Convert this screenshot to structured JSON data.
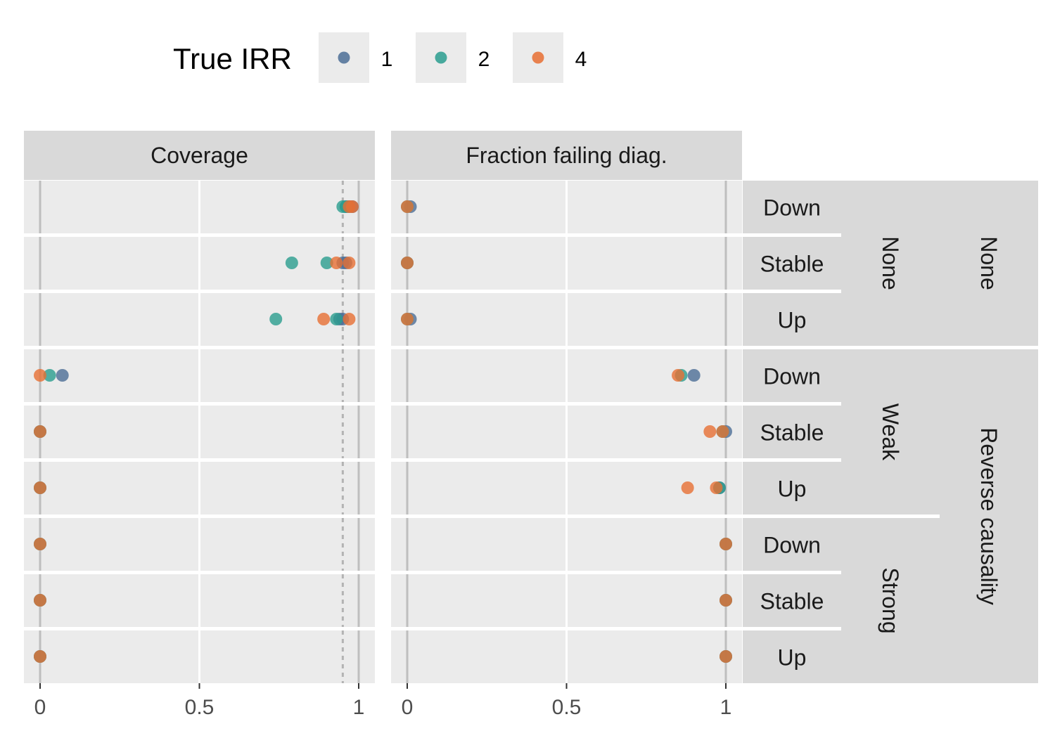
{
  "chart_data": {
    "type": "scatter",
    "legend": {
      "title": "True IRR",
      "position": "top",
      "entries": [
        {
          "label": "1",
          "color": "#4C6E96"
        },
        {
          "label": "2",
          "color": "#2A9D8F"
        },
        {
          "label": "4",
          "color": "#E76F33"
        }
      ]
    },
    "columns": [
      "Coverage",
      "Fraction failing diag."
    ],
    "x_ticks": [
      "0",
      "0.5",
      "1"
    ],
    "xlim": [
      0,
      1
    ],
    "reference_line": {
      "panel": "Coverage",
      "x": 0.95,
      "style": "dotted"
    },
    "grid": true,
    "rows": [
      {
        "trend": "Down",
        "strength": "None",
        "scenario": "None"
      },
      {
        "trend": "Stable",
        "strength": "None",
        "scenario": "None"
      },
      {
        "trend": "Up",
        "strength": "None",
        "scenario": "None"
      },
      {
        "trend": "Down",
        "strength": "Weak",
        "scenario": "Reverse causality"
      },
      {
        "trend": "Stable",
        "strength": "Weak",
        "scenario": "Reverse causality"
      },
      {
        "trend": "Up",
        "strength": "Weak",
        "scenario": "Reverse causality"
      },
      {
        "trend": "Down",
        "strength": "Strong",
        "scenario": "Reverse causality"
      },
      {
        "trend": "Stable",
        "strength": "Strong",
        "scenario": "Reverse causality"
      },
      {
        "trend": "Up",
        "strength": "Strong",
        "scenario": "Reverse causality"
      }
    ],
    "strength_groups": [
      {
        "label": "None",
        "rows": [
          0,
          2
        ]
      },
      {
        "label": "Weak",
        "rows": [
          3,
          5
        ]
      },
      {
        "label": "Strong",
        "rows": [
          6,
          8
        ]
      }
    ],
    "scenario_groups": [
      {
        "label": "None",
        "rows": [
          0,
          2
        ]
      },
      {
        "label": "Reverse causality",
        "rows": [
          3,
          8
        ]
      }
    ],
    "series": [
      {
        "name": "1",
        "coverage": [
          [
            0.96,
            0.97,
            0.98
          ],
          [
            0.95,
            0.96
          ],
          [
            0.94,
            0.95
          ],
          [
            0.07
          ],
          [
            0
          ],
          [
            0
          ],
          [
            0
          ],
          [
            0
          ],
          [
            0
          ]
        ],
        "fraction_failing": [
          [
            0.01
          ],
          [
            0.0
          ],
          [
            0.01
          ],
          [
            0.9
          ],
          [
            1.0
          ],
          [
            0.98
          ],
          [
            1.0
          ],
          [
            1.0
          ],
          [
            1.0
          ]
        ]
      },
      {
        "name": "2",
        "coverage": [
          [
            0.95,
            0.96
          ],
          [
            0.79,
            0.9
          ],
          [
            0.74,
            0.93
          ],
          [
            0.03
          ],
          [
            0
          ],
          [
            0
          ],
          [
            0
          ],
          [
            0
          ],
          [
            0
          ]
        ],
        "fraction_failing": [
          [
            0.0
          ],
          [
            0.0
          ],
          [
            0.0
          ],
          [
            0.86
          ],
          [
            0.99
          ],
          [
            0.98
          ],
          [
            1.0
          ],
          [
            1.0
          ],
          [
            1.0
          ]
        ]
      },
      {
        "name": "4",
        "coverage": [
          [
            0.97,
            0.98
          ],
          [
            0.93,
            0.97
          ],
          [
            0.89,
            0.97
          ],
          [
            0.0
          ],
          [
            0
          ],
          [
            0
          ],
          [
            0
          ],
          [
            0
          ],
          [
            0
          ]
        ],
        "fraction_failing": [
          [
            0.0
          ],
          [
            0.0
          ],
          [
            0.0
          ],
          [
            0.85
          ],
          [
            0.95,
            0.99
          ],
          [
            0.88,
            0.97
          ],
          [
            1.0
          ],
          [
            1.0
          ],
          [
            1.0
          ]
        ]
      }
    ]
  }
}
